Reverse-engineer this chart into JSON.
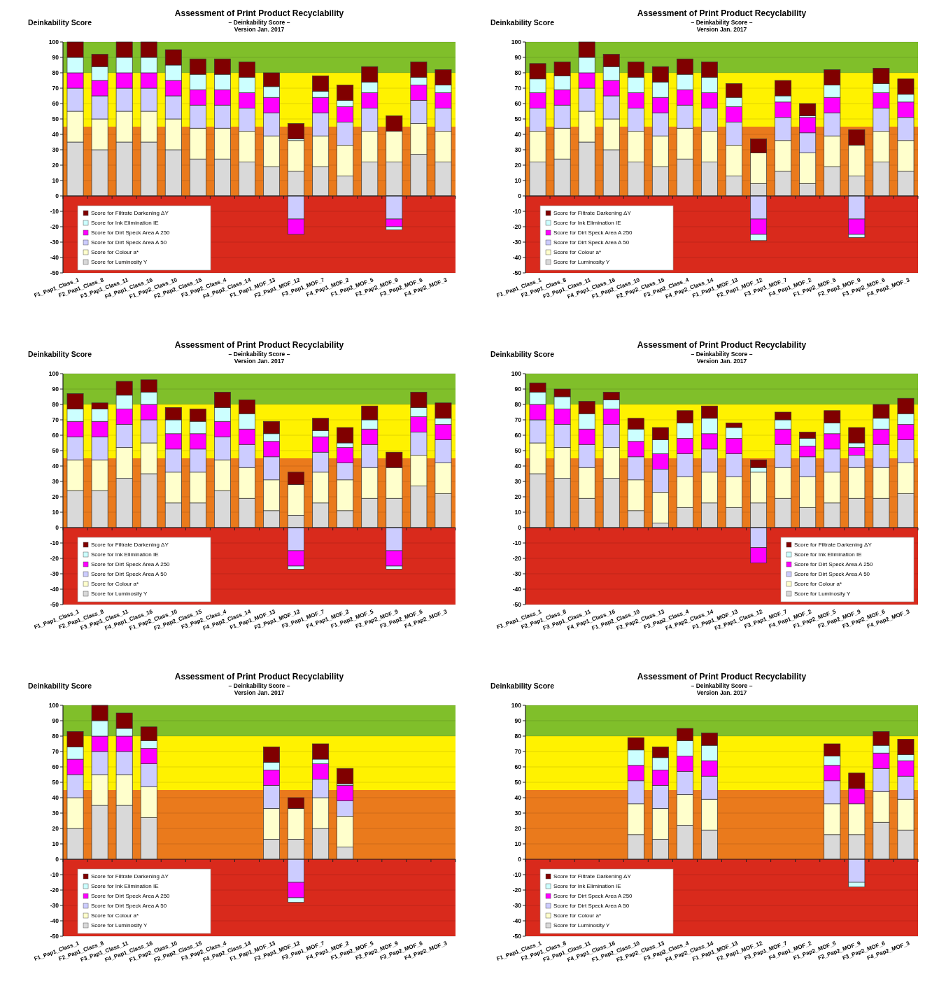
{
  "chart_data": [
    {
      "type": "bar",
      "stacked": true,
      "title": "Assessment of Print Product Recyclability",
      "subtitle": "– Deinkability Score –\nVersion Jan. 2017",
      "ylabel": "Deinkability Score",
      "legend": "bottom left",
      "grid": "y",
      "ylim": [
        -50,
        100
      ],
      "yticks": [
        -50,
        -40,
        -30,
        -20,
        -10,
        0,
        10,
        20,
        30,
        40,
        50,
        60,
        70,
        80,
        90,
        100
      ],
      "categories": [
        "F1_Pap1_Class_1",
        "F2_Pap1_Class_8",
        "F3_Pap1_Class_11",
        "F4_Pap1_Class_16",
        "F1_Pap2_Class_10",
        "F2_Pap2_Class_15",
        "F3_Pap2_Class_4",
        "F4_Pap2_Class_14",
        "F1_Pap1_MOF_13",
        "F2_Pap1_MOF_12",
        "F3_Pap1_MOF_7",
        "F4_Pap1_MOF_2",
        "F1_Pap2_MOF_5",
        "F2_Pap2_MOF_9",
        "F3_Pap2_MOF_6",
        "F4_Pap2_MOF_3"
      ],
      "bands": [
        {
          "axis": "y",
          "from": -50,
          "to": 0,
          "color": "#d92a1c"
        },
        {
          "axis": "y",
          "from": 0,
          "to": 45,
          "color": "#ea7a1c"
        },
        {
          "axis": "y",
          "from": 45,
          "to": 80,
          "color": "#fff200"
        },
        {
          "axis": "y",
          "from": 80,
          "to": 100,
          "color": "#80bf2a"
        }
      ],
      "series": [
        {
          "name": "Score for Luminosity Y",
          "color": "#d9d9d9",
          "values": [
            35,
            30,
            35,
            35,
            30,
            24,
            24,
            22,
            19,
            16,
            19,
            13,
            22,
            22,
            27,
            22
          ]
        },
        {
          "name": "Score for Colour a*",
          "color": "#ffffcc",
          "values": [
            20,
            20,
            20,
            20,
            20,
            20,
            20,
            20,
            20,
            20,
            20,
            20,
            20,
            20,
            20,
            20
          ]
        },
        {
          "name": "Score for Dirt Speck Area A 50",
          "color": "#ccccff",
          "values": [
            15,
            15,
            15,
            15,
            15,
            15,
            15,
            15,
            15,
            -15,
            15,
            15,
            15,
            -15,
            15,
            15
          ]
        },
        {
          "name": "Score for Dirt Speck Area A 250",
          "color": "#ff00ff",
          "values": [
            10,
            10,
            10,
            10,
            10,
            10,
            10,
            10,
            10,
            -10,
            10,
            10,
            10,
            -5,
            10,
            10
          ]
        },
        {
          "name": "Score for Ink Elimination IE",
          "color": "#ccffff",
          "values": [
            10,
            9,
            10,
            10,
            10,
            10,
            10,
            10,
            7,
            1,
            4,
            4,
            7,
            -2,
            5,
            5
          ]
        },
        {
          "name": "Score for Filtrate Darkening ΔY",
          "color": "#800000",
          "values": [
            10,
            8,
            10,
            10,
            10,
            10,
            10,
            10,
            9,
            10,
            10,
            10,
            10,
            10,
            10,
            10
          ]
        }
      ]
    },
    {
      "type": "bar",
      "stacked": true,
      "title": "Assessment of Print Product Recyclability",
      "subtitle": "– Deinkability Score –\nVersion Jan. 2017",
      "ylabel": "Deinkability Score",
      "legend": "bottom left",
      "grid": "y",
      "ylim": [
        -50,
        100
      ],
      "yticks": [
        -50,
        -40,
        -30,
        -20,
        -10,
        0,
        10,
        20,
        30,
        40,
        50,
        60,
        70,
        80,
        90,
        100
      ],
      "categories": [
        "F1_Pap1_Class_1",
        "F2_Pap1_Class_8",
        "F3_Pap1_Class_11",
        "F4_Pap1_Class_16",
        "F1_Pap2_Class_10",
        "F2_Pap2_Class_15",
        "F3_Pap2_Class_4",
        "F4_Pap2_Class_14",
        "F1_Pap1_MOF_13",
        "F2_Pap1_MOF_12",
        "F3_Pap1_MOF_7",
        "F4_Pap1_MOF_2",
        "F1_Pap2_MOF_5",
        "F2_Pap2_MOF_9",
        "F3_Pap2_MOF_6",
        "F4_Pap2_MOF_3"
      ],
      "bands": [
        {
          "axis": "y",
          "from": -50,
          "to": 0,
          "color": "#d92a1c"
        },
        {
          "axis": "y",
          "from": 0,
          "to": 45,
          "color": "#ea7a1c"
        },
        {
          "axis": "y",
          "from": 45,
          "to": 80,
          "color": "#fff200"
        },
        {
          "axis": "y",
          "from": 80,
          "to": 100,
          "color": "#80bf2a"
        }
      ],
      "series": [
        {
          "name": "Score for Luminosity Y",
          "color": "#d9d9d9",
          "values": [
            22,
            24,
            35,
            30,
            22,
            19,
            24,
            22,
            13,
            8,
            16,
            8,
            19,
            13,
            22,
            16
          ]
        },
        {
          "name": "Score for Colour a*",
          "color": "#ffffcc",
          "values": [
            20,
            20,
            20,
            20,
            20,
            20,
            20,
            20,
            20,
            20,
            20,
            20,
            20,
            20,
            20,
            20
          ]
        },
        {
          "name": "Score for Dirt Speck Area A 50",
          "color": "#ccccff",
          "values": [
            15,
            15,
            15,
            15,
            15,
            15,
            15,
            15,
            15,
            -15,
            15,
            13,
            15,
            -15,
            15,
            15
          ]
        },
        {
          "name": "Score for Dirt Speck Area A 250",
          "color": "#ff00ff",
          "values": [
            10,
            10,
            10,
            10,
            10,
            10,
            10,
            10,
            10,
            -10,
            10,
            10,
            10,
            -10,
            10,
            10
          ]
        },
        {
          "name": "Score for Ink Elimination IE",
          "color": "#ccffff",
          "values": [
            9,
            9,
            10,
            9,
            10,
            10,
            10,
            10,
            6,
            -4,
            4,
            1,
            8,
            -2,
            6,
            5
          ]
        },
        {
          "name": "Score for Filtrate Darkening ΔY",
          "color": "#800000",
          "values": [
            10,
            9,
            10,
            8,
            10,
            10,
            10,
            10,
            9,
            9,
            10,
            8,
            10,
            10,
            10,
            10
          ]
        }
      ]
    },
    {
      "type": "bar",
      "stacked": true,
      "title": "Assessment of Print Product Recyclability",
      "subtitle": "– Deinkability Score –\nVersion Jan. 2017",
      "ylabel": "Deinkability Score",
      "legend": "bottom left",
      "grid": "y",
      "ylim": [
        -50,
        100
      ],
      "yticks": [
        -50,
        -40,
        -30,
        -20,
        -10,
        0,
        10,
        20,
        30,
        40,
        50,
        60,
        70,
        80,
        90,
        100
      ],
      "categories": [
        "F1_Pap1_Class_1",
        "F2_Pap1_Class_8",
        "F3_Pap1_Class_11",
        "F4_Pap1_Class_16",
        "F1_Pap2_Class_10",
        "F2_Pap2_Class_15",
        "F3_Pap2_Class_4",
        "F4_Pap2_Class_14",
        "F1_Pap1_MOF_13",
        "F2_Pap1_MOF_12",
        "F3_Pap1_MOF_7",
        "F4_Pap1_MOF_2",
        "F1_Pap2_MOF_5",
        "F2_Pap2_MOF_9",
        "F3_Pap2_MOF_6",
        "F4_Pap2_MOF_3"
      ],
      "bands": [
        {
          "axis": "y",
          "from": -50,
          "to": 0,
          "color": "#d92a1c"
        },
        {
          "axis": "y",
          "from": 0,
          "to": 45,
          "color": "#ea7a1c"
        },
        {
          "axis": "y",
          "from": 45,
          "to": 80,
          "color": "#fff200"
        },
        {
          "axis": "y",
          "from": 80,
          "to": 100,
          "color": "#80bf2a"
        }
      ],
      "series": [
        {
          "name": "Score for Luminosity Y",
          "color": "#d9d9d9",
          "values": [
            24,
            24,
            32,
            35,
            16,
            16,
            24,
            19,
            11,
            8,
            16,
            11,
            19,
            19,
            27,
            22
          ]
        },
        {
          "name": "Score for Colour a*",
          "color": "#ffffcc",
          "values": [
            20,
            20,
            20,
            20,
            20,
            20,
            20,
            20,
            20,
            20,
            20,
            20,
            20,
            20,
            20,
            20
          ]
        },
        {
          "name": "Score for Dirt Speck Area A 50",
          "color": "#ccccff",
          "values": [
            15,
            15,
            15,
            15,
            15,
            15,
            15,
            15,
            15,
            -15,
            13,
            11,
            15,
            -15,
            15,
            15
          ]
        },
        {
          "name": "Score for Dirt Speck Area A 250",
          "color": "#ff00ff",
          "values": [
            10,
            10,
            10,
            10,
            10,
            10,
            10,
            10,
            10,
            -10,
            10,
            10,
            10,
            -10,
            10,
            10
          ]
        },
        {
          "name": "Score for Ink Elimination IE",
          "color": "#ccffff",
          "values": [
            8,
            8,
            9,
            8,
            9,
            8,
            9,
            10,
            5,
            -2,
            4,
            3,
            6,
            -2,
            6,
            4
          ]
        },
        {
          "name": "Score for Filtrate Darkening ΔY",
          "color": "#800000",
          "values": [
            10,
            4,
            9,
            8,
            8,
            8,
            10,
            9,
            8,
            8,
            8,
            10,
            9,
            10,
            10,
            10
          ]
        }
      ]
    },
    {
      "type": "bar",
      "stacked": true,
      "title": "Assessment of Print Product Recyclability",
      "subtitle": "– Deinkability Score –\nVersion Jan. 2017",
      "ylabel": "Deinkability Score",
      "legend": "bottom right",
      "grid": "y",
      "ylim": [
        -50,
        100
      ],
      "yticks": [
        -50,
        -40,
        -30,
        -20,
        -10,
        0,
        10,
        20,
        30,
        40,
        50,
        60,
        70,
        80,
        90,
        100
      ],
      "categories": [
        "F1_Pap1_Class_1",
        "F2_Pap1_Class_8",
        "F3_Pap1_Class_11",
        "F4_Pap1_Class_16",
        "F1_Pap2_Class_10",
        "F2_Pap2_Class_13",
        "F3_Pap2_Class_4",
        "F4_Pap2_Class_14",
        "F1_Pap1_MOF_13",
        "F2_Pap1_Class_12",
        "F3_Pap1_MOF_7",
        "F4_Pap1_MOF_2",
        "F1_Pap2_MOF_5",
        "F2_Pap2_MOF_9",
        "F3_Pap2_MOF_6",
        "F4_Pap2_MOF_3"
      ],
      "bands": [
        {
          "axis": "y",
          "from": -50,
          "to": 0,
          "color": "#d92a1c"
        },
        {
          "axis": "y",
          "from": 0,
          "to": 45,
          "color": "#ea7a1c"
        },
        {
          "axis": "y",
          "from": 45,
          "to": 80,
          "color": "#fff200"
        },
        {
          "axis": "y",
          "from": 80,
          "to": 100,
          "color": "#80bf2a"
        }
      ],
      "series": [
        {
          "name": "Score for Luminosity Y",
          "color": "#d9d9d9",
          "values": [
            35,
            32,
            19,
            32,
            11,
            3,
            13,
            16,
            13,
            16,
            19,
            13,
            16,
            19,
            19,
            22
          ]
        },
        {
          "name": "Score for Colour a*",
          "color": "#ffffcc",
          "values": [
            20,
            20,
            20,
            20,
            20,
            20,
            20,
            20,
            20,
            20,
            20,
            20,
            20,
            20,
            20,
            20
          ]
        },
        {
          "name": "Score for Dirt Speck Area A 50",
          "color": "#ccccff",
          "values": [
            15,
            15,
            15,
            15,
            15,
            15,
            15,
            15,
            15,
            -13,
            15,
            13,
            15,
            8,
            15,
            15
          ]
        },
        {
          "name": "Score for Dirt Speck Area A 250",
          "color": "#ff00ff",
          "values": [
            10,
            10,
            10,
            10,
            10,
            10,
            10,
            10,
            10,
            -10,
            10,
            7,
            10,
            5,
            10,
            10
          ]
        },
        {
          "name": "Score for Ink Elimination IE",
          "color": "#ccffff",
          "values": [
            8,
            8,
            10,
            6,
            8,
            9,
            10,
            10,
            7,
            3,
            6,
            5,
            7,
            3,
            7,
            7
          ]
        },
        {
          "name": "Score for Filtrate Darkening ΔY",
          "color": "#800000",
          "values": [
            6,
            5,
            8,
            5,
            7,
            8,
            8,
            8,
            3,
            5,
            5,
            4,
            8,
            10,
            9,
            10
          ]
        }
      ]
    },
    {
      "type": "bar",
      "stacked": true,
      "title": "Assessment of Print Product Recyclability",
      "subtitle": "– Deinkability Score –\nVersion Jan. 2017",
      "ylabel": "Deinkability Score",
      "legend": "bottom left",
      "grid": "y",
      "ylim": [
        -50,
        100
      ],
      "yticks": [
        -50,
        -40,
        -30,
        -20,
        -10,
        0,
        10,
        20,
        30,
        40,
        50,
        60,
        70,
        80,
        90,
        100
      ],
      "categories": [
        "F1_Pap1_Class_1",
        "F2_Pap1_Class_8",
        "F3_Pap1_Class_11",
        "F4_Pap1_Class_16",
        "F1_Pap2_Class_10",
        "F2_Pap2_Class_15",
        "F3_Pap2_Class_4",
        "F4_Pap2_Class_14",
        "F1_Pap1_MOF_13",
        "F2_Pap1_MOF_12",
        "F3_Pap1_MOF_7",
        "F4_Pap1_MOF_2",
        "F1_Pap2_MOF_5",
        "F2_Pap2_MOF_9",
        "F3_Pap2_MOF_6",
        "F4_Pap2_MOF_3"
      ],
      "bands": [
        {
          "axis": "y",
          "from": -50,
          "to": 0,
          "color": "#d92a1c"
        },
        {
          "axis": "y",
          "from": 0,
          "to": 45,
          "color": "#ea7a1c"
        },
        {
          "axis": "y",
          "from": 45,
          "to": 80,
          "color": "#fff200"
        },
        {
          "axis": "y",
          "from": 80,
          "to": 100,
          "color": "#80bf2a"
        }
      ],
      "series": [
        {
          "name": "Score for Luminosity Y",
          "color": "#d9d9d9",
          "values": [
            20,
            35,
            35,
            27,
            null,
            null,
            null,
            null,
            13,
            13,
            20,
            8,
            null,
            null,
            null,
            null
          ]
        },
        {
          "name": "Score for Colour a*",
          "color": "#ffffcc",
          "values": [
            20,
            20,
            20,
            20,
            null,
            null,
            null,
            null,
            20,
            20,
            20,
            20,
            null,
            null,
            null,
            null
          ]
        },
        {
          "name": "Score for Dirt Speck Area A 50",
          "color": "#ccccff",
          "values": [
            15,
            15,
            15,
            15,
            null,
            null,
            null,
            null,
            15,
            -15,
            12,
            10,
            null,
            null,
            null,
            null
          ]
        },
        {
          "name": "Score for Dirt Speck Area A 250",
          "color": "#ff00ff",
          "values": [
            10,
            10,
            10,
            10,
            null,
            null,
            null,
            null,
            10,
            -10,
            10,
            10,
            null,
            null,
            null,
            null
          ]
        },
        {
          "name": "Score for Ink Elimination IE",
          "color": "#ccffff",
          "values": [
            8,
            10,
            5,
            5,
            null,
            null,
            null,
            null,
            5,
            -3,
            3,
            1,
            null,
            null,
            null,
            null
          ]
        },
        {
          "name": "Score for Filtrate Darkening ΔY",
          "color": "#800000",
          "values": [
            10,
            10,
            10,
            9,
            null,
            null,
            null,
            null,
            10,
            7,
            10,
            10,
            null,
            null,
            null,
            null
          ]
        }
      ]
    },
    {
      "type": "bar",
      "stacked": true,
      "title": "Assessment of Print Product Recyclability",
      "subtitle": "– Deinkability Score –\nVersion Jan. 2017",
      "ylabel": "Deinkability Score",
      "legend": "bottom left",
      "grid": "y",
      "ylim": [
        -50,
        100
      ],
      "yticks": [
        -50,
        -40,
        -30,
        -20,
        -10,
        0,
        10,
        20,
        30,
        40,
        50,
        60,
        70,
        80,
        90,
        100
      ],
      "categories": [
        "F1_Pap1_Class_1",
        "F2_Pap1_Class_8",
        "F3_Pap1_Class_11",
        "F4_Pap1_Class_16",
        "F1_Pap2_Class_10",
        "F2_Pap2_Class_13",
        "F3_Pap2_Class_4",
        "F4_Pap2_Class_14",
        "F1_Pap1_MOF_13",
        "F2_Pap1_MOF_12",
        "F3_Pap1_MOF_7",
        "F4_Pap1_MOF_2",
        "F1_Pap2_MOF_5",
        "F2_Pap2_MOF_9",
        "F3_Pap2_MOF_6",
        "F4_Pap2_MOF_3"
      ],
      "bands": [
        {
          "axis": "y",
          "from": -50,
          "to": 0,
          "color": "#d92a1c"
        },
        {
          "axis": "y",
          "from": 0,
          "to": 45,
          "color": "#ea7a1c"
        },
        {
          "axis": "y",
          "from": 45,
          "to": 80,
          "color": "#fff200"
        },
        {
          "axis": "y",
          "from": 80,
          "to": 100,
          "color": "#80bf2a"
        }
      ],
      "series": [
        {
          "name": "Score for Luminosity Y",
          "color": "#d9d9d9",
          "values": [
            null,
            null,
            null,
            null,
            16,
            13,
            22,
            19,
            null,
            null,
            null,
            null,
            16,
            16,
            24,
            19
          ]
        },
        {
          "name": "Score for Colour a*",
          "color": "#ffffcc",
          "values": [
            null,
            null,
            null,
            null,
            20,
            20,
            20,
            20,
            null,
            null,
            null,
            null,
            20,
            20,
            20,
            20
          ]
        },
        {
          "name": "Score for Dirt Speck Area A 50",
          "color": "#ccccff",
          "values": [
            null,
            null,
            null,
            null,
            15,
            15,
            15,
            15,
            null,
            null,
            null,
            null,
            15,
            -15,
            15,
            15
          ]
        },
        {
          "name": "Score for Dirt Speck Area A 250",
          "color": "#ff00ff",
          "values": [
            null,
            null,
            null,
            null,
            10,
            10,
            10,
            10,
            null,
            null,
            null,
            null,
            10,
            10,
            10,
            10
          ]
        },
        {
          "name": "Score for Ink Elimination IE",
          "color": "#ccffff",
          "values": [
            null,
            null,
            null,
            null,
            10,
            8,
            10,
            10,
            null,
            null,
            null,
            null,
            6,
            -3,
            5,
            4
          ]
        },
        {
          "name": "Score for Filtrate Darkening ΔY",
          "color": "#800000",
          "values": [
            null,
            null,
            null,
            null,
            8,
            7,
            8,
            8,
            null,
            null,
            null,
            null,
            8,
            10,
            9,
            10
          ]
        }
      ]
    }
  ]
}
